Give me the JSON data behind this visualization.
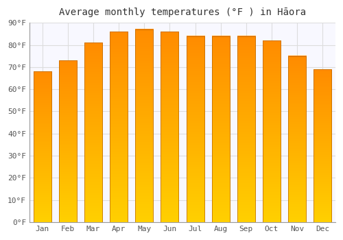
{
  "title": "Average monthly temperatures (°F ) in Hāora",
  "months": [
    "Jan",
    "Feb",
    "Mar",
    "Apr",
    "May",
    "Jun",
    "Jul",
    "Aug",
    "Sep",
    "Oct",
    "Nov",
    "Dec"
  ],
  "values": [
    68,
    73,
    81,
    86,
    87,
    86,
    84,
    84,
    84,
    82,
    75,
    69
  ],
  "bar_color": "#FFA500",
  "bar_edge_color": "#CC7700",
  "background_color": "#ffffff",
  "plot_bg_color": "#f8f8ff",
  "grid_color": "#dddddd",
  "ylim": [
    0,
    90
  ],
  "yticks": [
    0,
    10,
    20,
    30,
    40,
    50,
    60,
    70,
    80,
    90
  ],
  "ytick_labels": [
    "0°F",
    "10°F",
    "20°F",
    "30°F",
    "40°F",
    "50°F",
    "60°F",
    "70°F",
    "80°F",
    "90°F"
  ],
  "title_fontsize": 10,
  "tick_fontsize": 8,
  "figsize": [
    5.0,
    3.5
  ],
  "dpi": 100
}
